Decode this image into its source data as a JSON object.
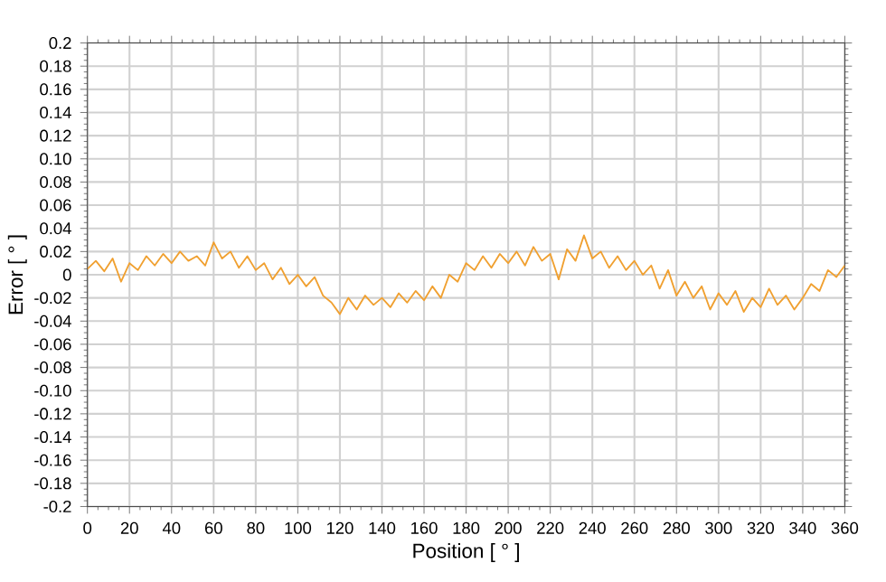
{
  "chart_data": {
    "type": "line",
    "xlabel": "Position [ ° ]",
    "ylabel": "Error [ ° ]",
    "x": [
      0,
      4,
      8,
      12,
      16,
      20,
      24,
      28,
      32,
      36,
      40,
      44,
      48,
      52,
      56,
      60,
      64,
      68,
      72,
      76,
      80,
      84,
      88,
      92,
      96,
      100,
      104,
      108,
      112,
      116,
      120,
      124,
      128,
      132,
      136,
      140,
      144,
      148,
      152,
      156,
      160,
      164,
      168,
      172,
      176,
      180,
      184,
      188,
      192,
      196,
      200,
      204,
      208,
      212,
      216,
      220,
      224,
      228,
      232,
      236,
      240,
      244,
      248,
      252,
      256,
      260,
      264,
      268,
      272,
      276,
      280,
      284,
      288,
      292,
      296,
      300,
      304,
      308,
      312,
      316,
      320,
      324,
      328,
      332,
      336,
      340,
      344,
      348,
      352,
      356,
      360
    ],
    "series": [
      {
        "color": "#f0a030",
        "values": [
          0.005,
          0.012,
          0.003,
          0.014,
          -0.006,
          0.01,
          0.004,
          0.016,
          0.008,
          0.018,
          0.01,
          0.02,
          0.012,
          0.016,
          0.008,
          0.028,
          0.014,
          0.02,
          0.006,
          0.016,
          0.004,
          0.01,
          -0.004,
          0.006,
          -0.008,
          0,
          -0.01,
          -0.002,
          -0.018,
          -0.024,
          -0.034,
          -0.02,
          -0.03,
          -0.018,
          -0.026,
          -0.02,
          -0.028,
          -0.016,
          -0.024,
          -0.014,
          -0.022,
          -0.01,
          -0.02,
          0,
          -0.006,
          0.01,
          0.004,
          0.016,
          0.006,
          0.018,
          0.01,
          0.02,
          0.008,
          0.024,
          0.012,
          0.018,
          -0.004,
          0.022,
          0.012,
          0.034,
          0.014,
          0.02,
          0.006,
          0.016,
          0.004,
          0.012,
          0,
          0.008,
          -0.012,
          0.004,
          -0.018,
          -0.006,
          -0.02,
          -0.01,
          -0.03,
          -0.016,
          -0.026,
          -0.014,
          -0.032,
          -0.02,
          -0.028,
          -0.012,
          -0.026,
          -0.018,
          -0.03,
          -0.02,
          -0.008,
          -0.014,
          0.004,
          -0.002,
          0.008
        ]
      }
    ],
    "xlim": [
      0,
      360
    ],
    "xticks": [
      0,
      20,
      40,
      60,
      80,
      100,
      120,
      140,
      160,
      180,
      200,
      220,
      240,
      260,
      280,
      300,
      320,
      340,
      360
    ],
    "ylim": [
      -0.2,
      0.2
    ],
    "yticks": [
      0.2,
      0.18,
      0.16,
      0.14,
      0.12,
      {
        "value": 0.1,
        "label": "0.10"
      },
      0.08,
      0.06,
      0.04,
      0.02,
      0,
      -0.02,
      -0.04,
      -0.06,
      -0.08,
      {
        "value": -0.1,
        "label": "-0.10"
      },
      -0.12,
      -0.14,
      -0.16,
      -0.18,
      -0.2
    ],
    "grid": true,
    "marker": "none",
    "line_style": "solid"
  }
}
